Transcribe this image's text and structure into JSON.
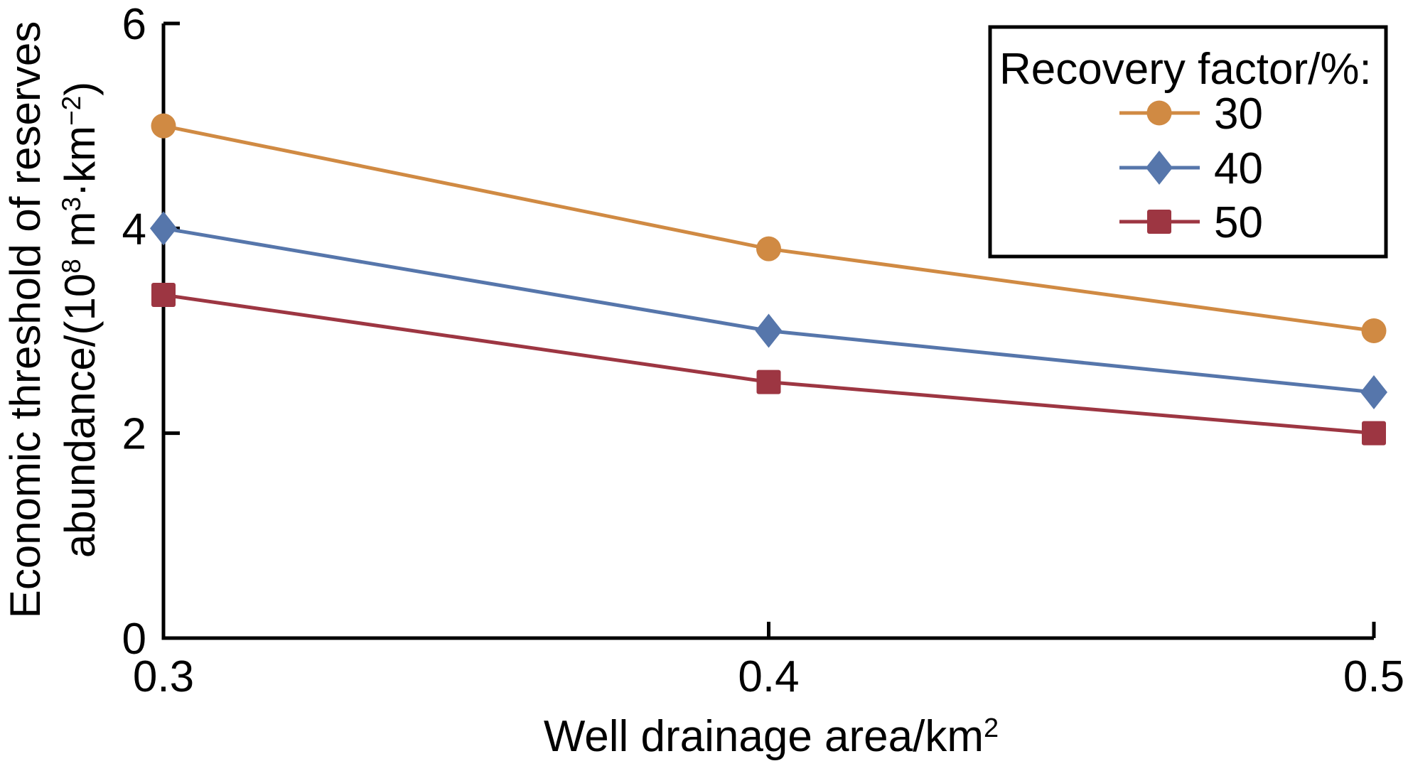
{
  "figure": {
    "background": "#FFFFFF",
    "axis_color": "#000000",
    "text_color": "#000000"
  },
  "chart_data": {
    "type": "line",
    "title": "",
    "x": [
      0.3,
      0.4,
      0.5
    ],
    "xlim": [
      0.3,
      0.5
    ],
    "ylim": [
      0,
      6
    ],
    "grid": false,
    "xtick_labels": [
      "0.3",
      "0.4",
      "0.5"
    ],
    "xtick_values": [
      0.3,
      0.4,
      0.5
    ],
    "ytick_labels": [
      "0",
      "2",
      "4",
      "6"
    ],
    "ytick_values": [
      0,
      2,
      4,
      6
    ],
    "xlabel_text": "Well drainage area/km²",
    "xlabel_parts": [
      {
        "t": "Well drainage area/km"
      },
      {
        "t": "2",
        "sup": true
      }
    ],
    "ylabel_text": "Economic threshold of reserves abundance/(10⁸ m³·km⁻²)",
    "ylabel_lines": [
      {
        "parts": [
          {
            "t": "Economic threshold of reserves"
          }
        ]
      },
      {
        "parts": [
          {
            "t": "abundance/(10"
          },
          {
            "t": "8",
            "sup": true
          },
          {
            "t": " m"
          },
          {
            "t": "3",
            "sup": true
          },
          {
            "t": "·km"
          },
          {
            "t": "−2",
            "sup": true
          },
          {
            "t": ")"
          }
        ]
      }
    ],
    "series": [
      {
        "name": "30",
        "marker": "circle-marker",
        "color": "#D08A43",
        "values": [
          5.0,
          3.8,
          3.0
        ]
      },
      {
        "name": "40",
        "marker": "diamond-marker",
        "color": "#5676AB",
        "values": [
          4.0,
          3.0,
          2.4
        ]
      },
      {
        "name": "50",
        "marker": "square-marker",
        "color": "#9D3642",
        "values": [
          3.35,
          2.5,
          2.0
        ]
      }
    ],
    "legend": {
      "title": "Recovery factor/%:",
      "position": "top-right",
      "border_color": "#000000",
      "entries": [
        {
          "label": "30"
        },
        {
          "label": "40"
        },
        {
          "label": "50"
        }
      ]
    }
  }
}
